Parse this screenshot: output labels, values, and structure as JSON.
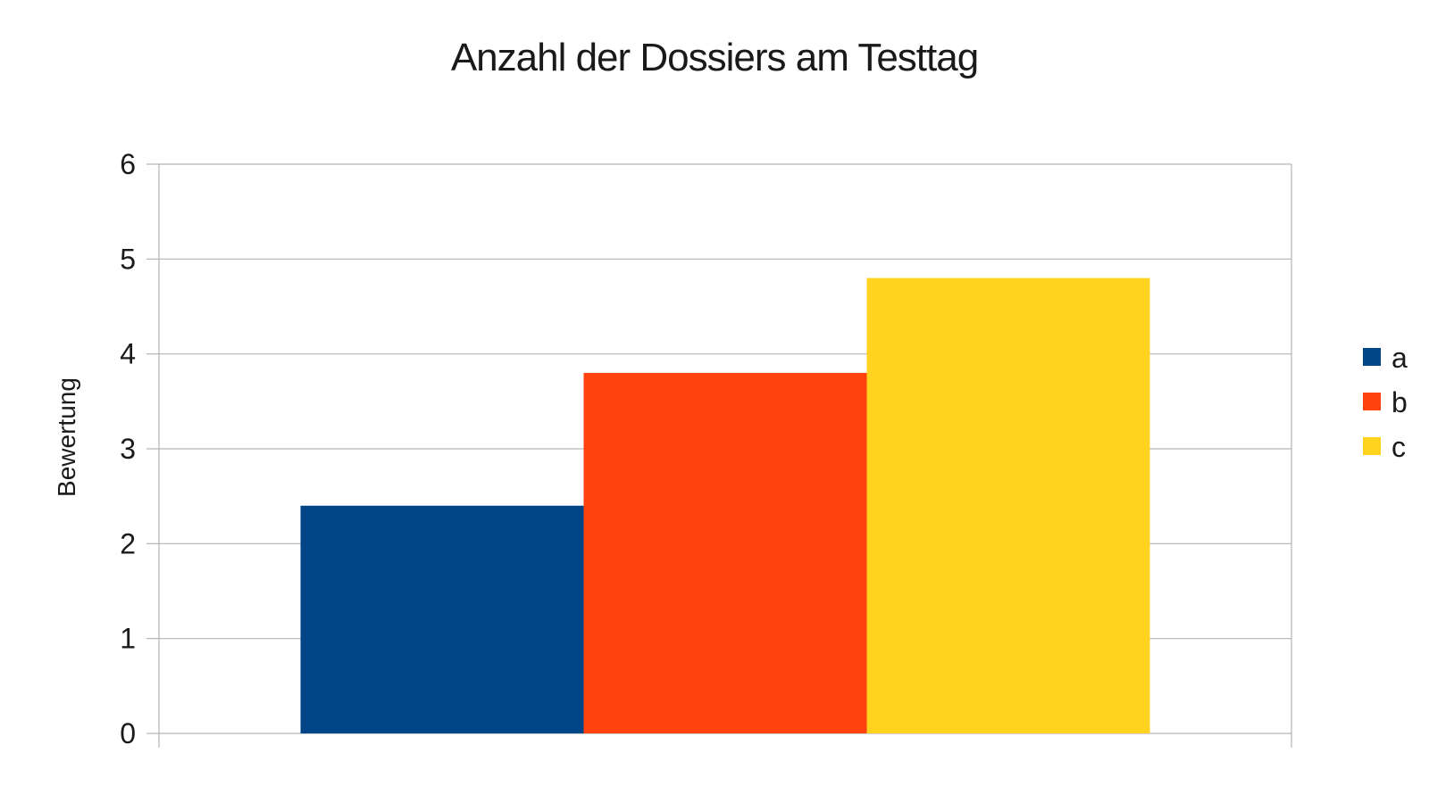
{
  "chart_data": {
    "type": "bar",
    "title": "Anzahl der Dossiers am Testtag",
    "xlabel": "",
    "ylabel": "Bewertung",
    "ylim": [
      0,
      6
    ],
    "yticks": [
      "0",
      "1",
      "2",
      "3",
      "4",
      "5",
      "6"
    ],
    "categories": [
      ""
    ],
    "series": [
      {
        "name": "a",
        "values": [
          2.4
        ],
        "color": "#004586"
      },
      {
        "name": "b",
        "values": [
          3.8
        ],
        "color": "#ff420e"
      },
      {
        "name": "c",
        "values": [
          4.8
        ],
        "color": "#ffd320"
      }
    ],
    "grid": true,
    "legend": "right"
  }
}
